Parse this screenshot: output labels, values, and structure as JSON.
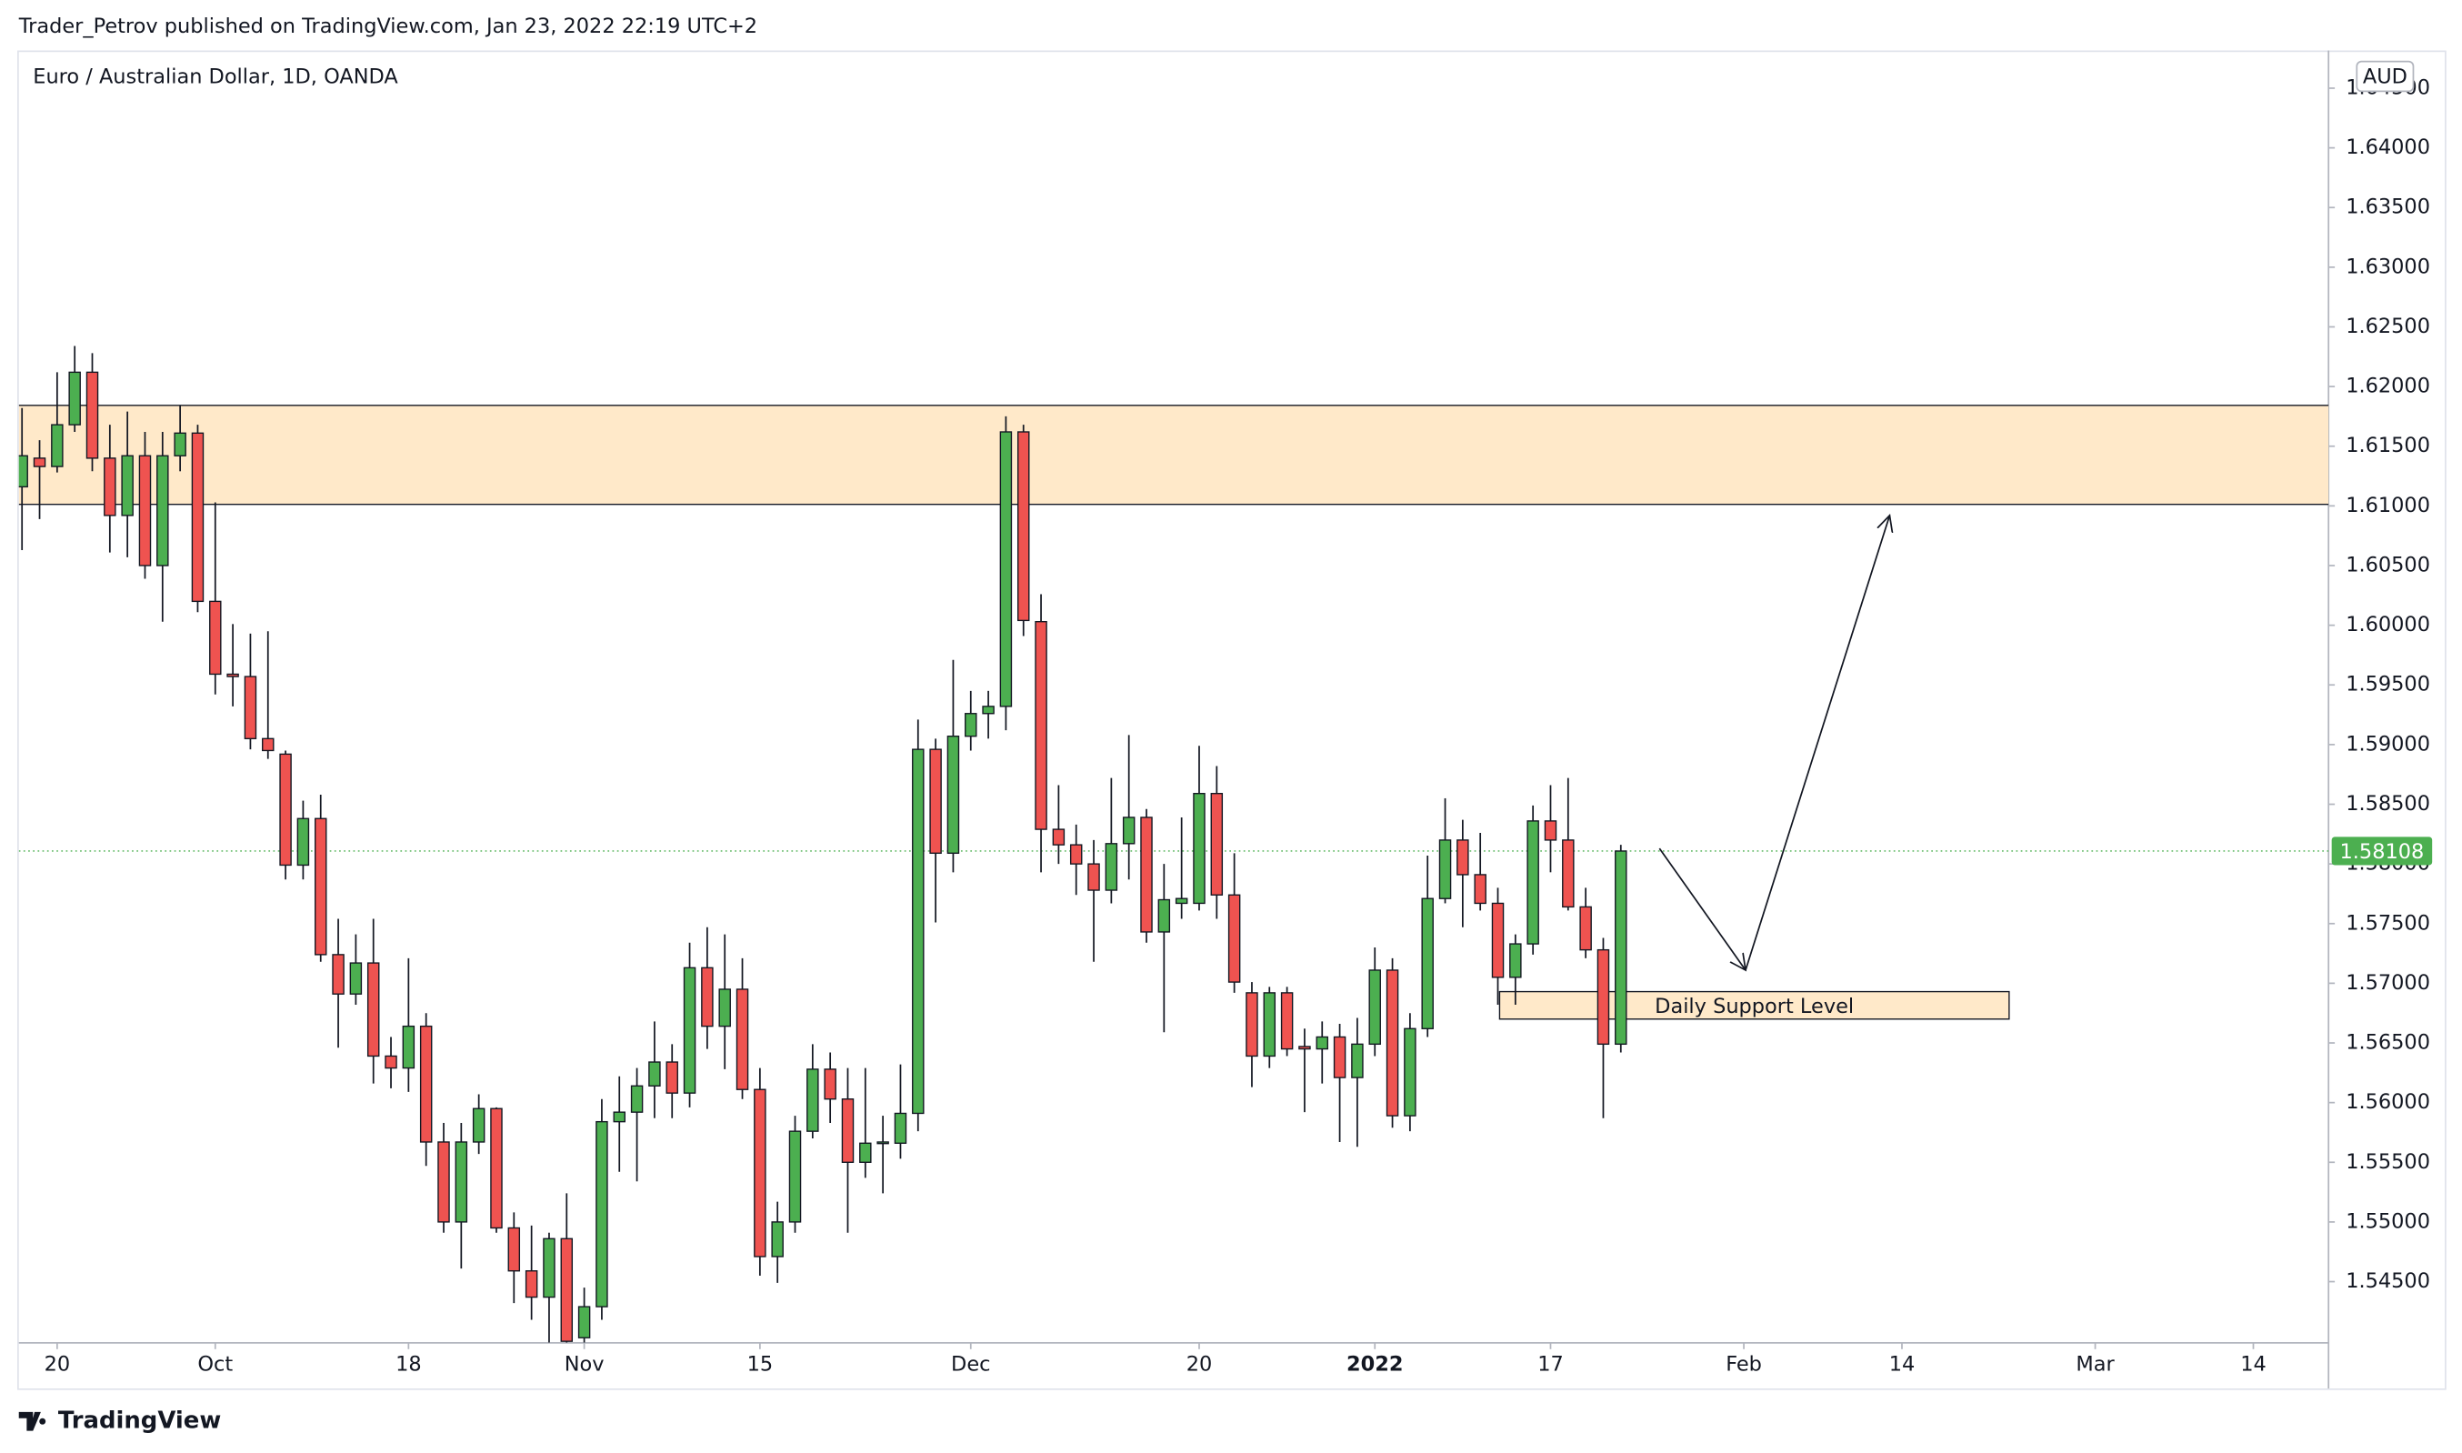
{
  "chart_data": {
    "type": "candlestick",
    "header": "Trader_Petrov published on TradingView.com, Jan 23, 2022 22:19 UTC+2",
    "title": "Euro / Australian Dollar, 1D, OANDA",
    "currency": "AUD",
    "brand": "TradingView",
    "up_color": "#4caf50",
    "down_color": "#ef5350",
    "xlim": [
      -0.18,
      131.28
    ],
    "ylim": [
      1.53987,
      1.64816
    ],
    "xticks": [
      {
        "value": 2,
        "label": "20"
      },
      {
        "value": 11,
        "label": "Oct"
      },
      {
        "value": 22,
        "label": "18"
      },
      {
        "value": 32,
        "label": "Nov"
      },
      {
        "value": 42,
        "label": "15"
      },
      {
        "value": 54,
        "label": "Dec"
      },
      {
        "value": 67,
        "label": "20"
      },
      {
        "value": 77,
        "label": "2022"
      },
      {
        "value": 87,
        "label": "17"
      },
      {
        "value": 98,
        "label": "Feb"
      },
      {
        "value": 107,
        "label": "14"
      },
      {
        "value": 118,
        "label": "Mar"
      },
      {
        "value": 127,
        "label": "14"
      }
    ],
    "yticks": [
      {
        "value": 1.545,
        "label": "1.54500"
      },
      {
        "value": 1.55,
        "label": "1.55000"
      },
      {
        "value": 1.555,
        "label": "1.55500"
      },
      {
        "value": 1.56,
        "label": "1.56000"
      },
      {
        "value": 1.565,
        "label": "1.56500"
      },
      {
        "value": 1.57,
        "label": "1.57000"
      },
      {
        "value": 1.575,
        "label": "1.57500"
      },
      {
        "value": 1.58,
        "label": "1.58000"
      },
      {
        "value": 1.585,
        "label": "1.58500"
      },
      {
        "value": 1.59,
        "label": "1.59000"
      },
      {
        "value": 1.595,
        "label": "1.59500"
      },
      {
        "value": 1.6,
        "label": "1.60000"
      },
      {
        "value": 1.605,
        "label": "1.60500"
      },
      {
        "value": 1.61,
        "label": "1.61000"
      },
      {
        "value": 1.615,
        "label": "1.61500"
      },
      {
        "value": 1.62,
        "label": "1.62000"
      },
      {
        "value": 1.625,
        "label": "1.62500"
      },
      {
        "value": 1.63,
        "label": "1.63000"
      },
      {
        "value": 1.635,
        "label": "1.63500"
      },
      {
        "value": 1.64,
        "label": "1.64000"
      },
      {
        "value": 1.645,
        "label": "1.64500"
      }
    ],
    "open": [
      1.6116,
      1.614,
      1.6133,
      1.6168,
      1.6212,
      1.614,
      1.6092,
      1.6142,
      1.605,
      1.6142,
      1.6161,
      1.602,
      1.5959,
      1.5957,
      1.5905,
      1.5892,
      1.5799,
      1.5838,
      1.5724,
      1.5691,
      1.5717,
      1.5639,
      1.5629,
      1.5664,
      1.5567,
      1.55,
      1.5567,
      1.5595,
      1.5495,
      1.5459,
      1.5437,
      1.5486,
      1.5403,
      1.5429,
      1.5584,
      1.5592,
      1.5614,
      1.5634,
      1.5608,
      1.5713,
      1.5664,
      1.5695,
      1.5611,
      1.5471,
      1.55,
      1.5576,
      1.5628,
      1.5603,
      1.555,
      1.5566,
      1.5566,
      1.5591,
      1.5896,
      1.5809,
      1.5907,
      1.5926,
      1.5932,
      1.6162,
      1.6003,
      1.5829,
      1.5816,
      1.58,
      1.5778,
      1.5817,
      1.5839,
      1.5743,
      1.5767,
      1.5767,
      1.5859,
      1.5774,
      1.5692,
      1.5639,
      1.5692,
      1.5647,
      1.5645,
      1.5655,
      1.5621,
      1.5649,
      1.5711,
      1.5589,
      1.5662,
      1.5771,
      1.582,
      1.5791,
      1.5767,
      1.5705,
      1.5733,
      1.5836,
      1.582,
      1.5764,
      1.5728,
      1.5649
    ],
    "high": [
      1.6182,
      1.6155,
      1.6212,
      1.6234,
      1.6228,
      1.6168,
      1.6179,
      1.6162,
      1.6162,
      1.6184,
      1.6168,
      1.6103,
      1.6001,
      1.5993,
      1.5995,
      1.5895,
      1.5853,
      1.5858,
      1.5754,
      1.5741,
      1.5754,
      1.5655,
      1.5721,
      1.5675,
      1.5583,
      1.5583,
      1.5607,
      1.5596,
      1.5508,
      1.5497,
      1.5491,
      1.5524,
      1.5445,
      1.5603,
      1.5622,
      1.5629,
      1.5668,
      1.5649,
      1.5734,
      1.5747,
      1.5741,
      1.5721,
      1.5629,
      1.5517,
      1.5589,
      1.5649,
      1.5642,
      1.5629,
      1.5629,
      1.5589,
      1.5632,
      1.5921,
      1.5905,
      1.5971,
      1.5945,
      1.5945,
      1.6175,
      1.6168,
      1.6026,
      1.5866,
      1.5833,
      1.582,
      1.5872,
      1.5908,
      1.5846,
      1.58,
      1.5839,
      1.5899,
      1.5882,
      1.5809,
      1.5701,
      1.5697,
      1.5697,
      1.5662,
      1.5668,
      1.5666,
      1.5671,
      1.573,
      1.5721,
      1.5675,
      1.5807,
      1.5855,
      1.5837,
      1.5826,
      1.578,
      1.5741,
      1.5849,
      1.5866,
      1.5872,
      1.578,
      1.5738,
      1.5816
    ],
    "low": [
      1.6063,
      1.6089,
      1.6128,
      1.6162,
      1.6129,
      1.6061,
      1.6057,
      1.6039,
      1.6003,
      1.6129,
      1.6011,
      1.5942,
      1.5932,
      1.5896,
      1.5888,
      1.5787,
      1.5787,
      1.5718,
      1.5646,
      1.5682,
      1.5616,
      1.5612,
      1.5609,
      1.5547,
      1.5491,
      1.5461,
      1.5557,
      1.5491,
      1.5432,
      1.5418,
      1.5399,
      1.5399,
      1.5399,
      1.5418,
      1.5542,
      1.5534,
      1.5587,
      1.5587,
      1.5596,
      1.5645,
      1.5628,
      1.5603,
      1.5455,
      1.5449,
      1.5491,
      1.557,
      1.5583,
      1.5491,
      1.5537,
      1.5524,
      1.5553,
      1.5576,
      1.5751,
      1.5793,
      1.5895,
      1.5905,
      1.5912,
      1.5991,
      1.5793,
      1.58,
      1.5774,
      1.5718,
      1.5767,
      1.5787,
      1.5734,
      1.5659,
      1.5754,
      1.5761,
      1.5754,
      1.5692,
      1.5613,
      1.5629,
      1.5639,
      1.5592,
      1.5616,
      1.5567,
      1.5563,
      1.5639,
      1.5579,
      1.5576,
      1.5655,
      1.5767,
      1.5747,
      1.5761,
      1.5682,
      1.5682,
      1.5724,
      1.5793,
      1.5761,
      1.5721,
      1.5587,
      1.5642
    ],
    "close": [
      1.6142,
      1.6133,
      1.6168,
      1.6212,
      1.614,
      1.6092,
      1.6142,
      1.605,
      1.6142,
      1.6161,
      1.602,
      1.5959,
      1.5957,
      1.5905,
      1.5895,
      1.5799,
      1.5838,
      1.5724,
      1.5691,
      1.5717,
      1.5639,
      1.5629,
      1.5664,
      1.5567,
      1.55,
      1.5567,
      1.5595,
      1.5495,
      1.5459,
      1.5437,
      1.5486,
      1.54,
      1.5429,
      1.5584,
      1.5592,
      1.5614,
      1.5634,
      1.5608,
      1.5713,
      1.5664,
      1.5695,
      1.5611,
      1.5471,
      1.55,
      1.5576,
      1.5628,
      1.5603,
      1.555,
      1.5566,
      1.5567,
      1.5591,
      1.5896,
      1.5809,
      1.5907,
      1.5926,
      1.5932,
      1.6162,
      1.6004,
      1.5829,
      1.5816,
      1.58,
      1.5778,
      1.5817,
      1.5839,
      1.5743,
      1.577,
      1.5771,
      1.5859,
      1.5774,
      1.5701,
      1.5639,
      1.5692,
      1.5645,
      1.5645,
      1.5655,
      1.5621,
      1.5649,
      1.5711,
      1.5589,
      1.5662,
      1.5771,
      1.582,
      1.5791,
      1.5767,
      1.5705,
      1.5733,
      1.5836,
      1.582,
      1.5764,
      1.5728,
      1.5649,
      1.58108
    ],
    "zones": [
      {
        "from": 1.61013,
        "to": 1.61842,
        "color": "#ffe9c9"
      },
      {
        "from": 1.567,
        "to": 1.5693,
        "x": [
          84.1,
          113.1
        ],
        "color": "#ffe9c9",
        "label": "Daily Support Level"
      }
    ],
    "arrow": {
      "x": [
        93.2,
        98.1,
        106.3
      ],
      "y": [
        1.5813,
        1.5711,
        1.6092
      ]
    }
  }
}
